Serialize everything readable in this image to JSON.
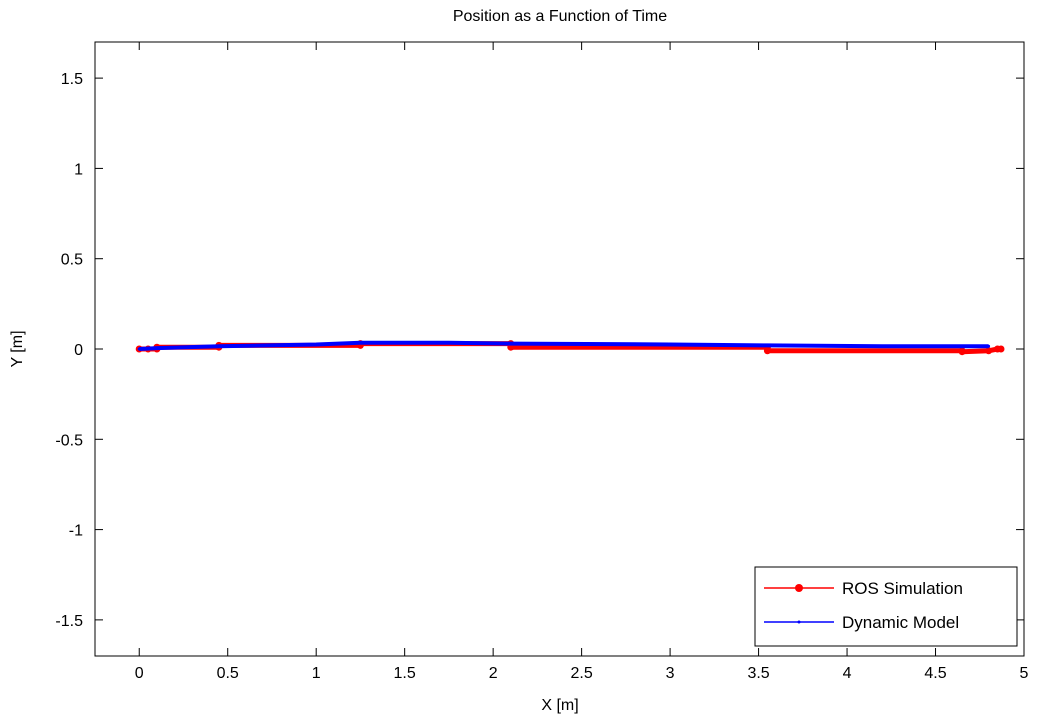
{
  "chart_data": {
    "type": "line",
    "title": "Position as a Function of Time",
    "xlabel": "X [m]",
    "ylabel": "Y [m]",
    "xlim": [
      -0.25,
      5
    ],
    "ylim": [
      -1.7,
      1.7
    ],
    "grid": false,
    "legend_position": "bottom-right",
    "x_ticks": [
      {
        "value": 0,
        "label": "0"
      },
      {
        "value": 0.5,
        "label": "0.5"
      },
      {
        "value": 1,
        "label": "1"
      },
      {
        "value": 1.5,
        "label": "1.5"
      },
      {
        "value": 2,
        "label": "2"
      },
      {
        "value": 2.5,
        "label": "2.5"
      },
      {
        "value": 3,
        "label": "3"
      },
      {
        "value": 3.5,
        "label": "3.5"
      },
      {
        "value": 4,
        "label": "4"
      },
      {
        "value": 4.5,
        "label": "4.5"
      },
      {
        "value": 5,
        "label": "5"
      }
    ],
    "y_ticks": [
      {
        "value": 1.5,
        "label": "1.5"
      },
      {
        "value": 1,
        "label": "1"
      },
      {
        "value": 0.5,
        "label": "0.5"
      },
      {
        "value": 0,
        "label": "0"
      },
      {
        "value": -0.5,
        "label": "-0.5"
      },
      {
        "value": -1,
        "label": "-1"
      },
      {
        "value": -1.5,
        "label": "-1.5"
      }
    ],
    "series": [
      {
        "name": "ROS Simulation",
        "color": "#ff0000",
        "marker": "dot",
        "points": [
          [
            0,
            0
          ],
          [
            0.05,
            0
          ],
          [
            0.1,
            0
          ],
          [
            0.1,
            0.01
          ],
          [
            0.45,
            0.01
          ],
          [
            0.45,
            0.02
          ],
          [
            1.25,
            0.02
          ],
          [
            1.25,
            0.03
          ],
          [
            2.1,
            0.03
          ],
          [
            2.1,
            0.01
          ],
          [
            3.55,
            0.01
          ],
          [
            3.55,
            -0.01
          ],
          [
            4.65,
            -0.01
          ],
          [
            4.65,
            -0.015
          ],
          [
            4.8,
            -0.01
          ],
          [
            4.85,
            0
          ],
          [
            4.87,
            0
          ]
        ]
      },
      {
        "name": "Dynamic Model",
        "color": "#0000ff",
        "marker": "point",
        "points": [
          [
            0,
            0
          ],
          [
            0.1,
            0.005
          ],
          [
            0.45,
            0.015
          ],
          [
            1.0,
            0.025
          ],
          [
            1.25,
            0.035
          ],
          [
            1.75,
            0.035
          ],
          [
            2.1,
            0.03
          ],
          [
            3.0,
            0.025
          ],
          [
            3.55,
            0.02
          ],
          [
            4.2,
            0.015
          ],
          [
            4.8,
            0.015
          ]
        ]
      }
    ]
  }
}
